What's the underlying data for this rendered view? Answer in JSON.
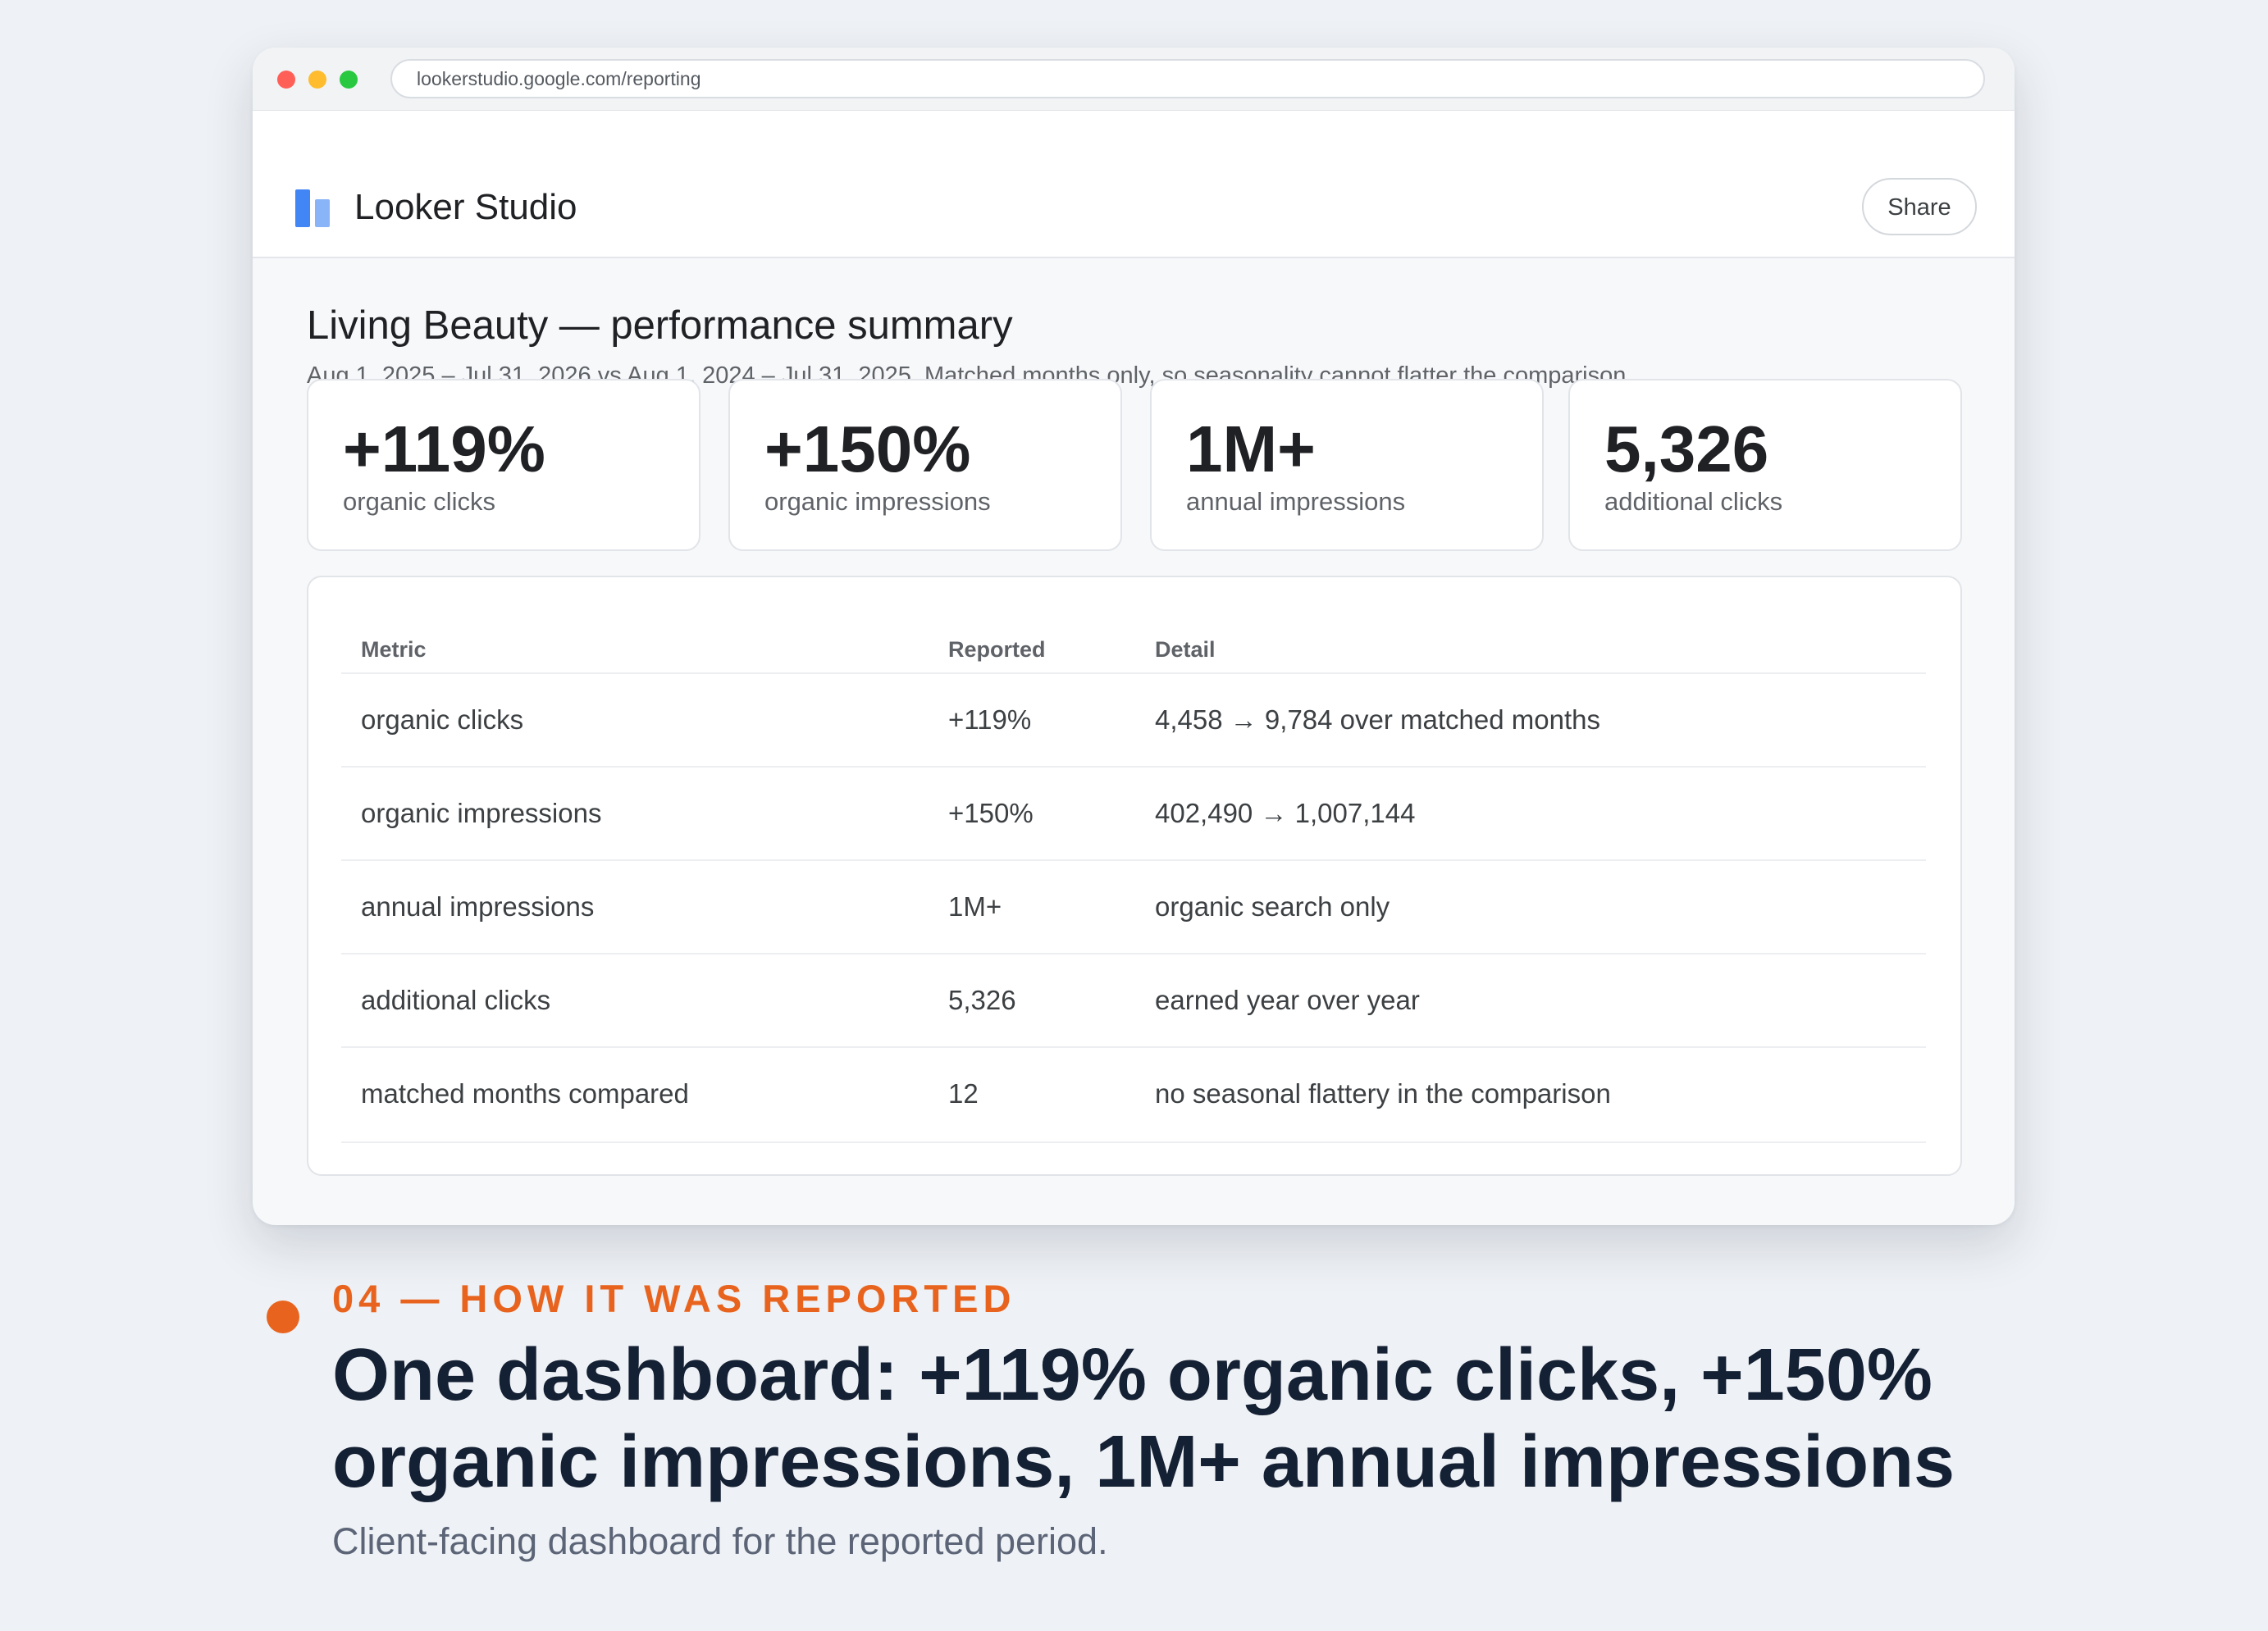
{
  "browser": {
    "url": "lookerstudio.google.com/reporting",
    "traffic_lights": {
      "close": "#ff5f57",
      "minimize": "#febc2e",
      "maximize": "#28c840"
    }
  },
  "app": {
    "name": "Looker Studio",
    "logo_colors": {
      "primary": "#4285f4",
      "secondary": "#8ab4f8"
    },
    "share_label": "Share"
  },
  "report": {
    "title": "Living Beauty — performance summary",
    "subtitle": "Aug 1, 2025 – Jul 31, 2026 vs Aug 1, 2024 – Jul 31, 2025. Matched months only, so seasonality cannot flatter the comparison."
  },
  "kpis": [
    {
      "value": "+119%",
      "label": "organic clicks"
    },
    {
      "value": "+150%",
      "label": "organic impressions"
    },
    {
      "value": "1M+",
      "label": "annual impressions"
    },
    {
      "value": "5,326",
      "label": "additional clicks"
    }
  ],
  "table": {
    "headers": [
      "Metric",
      "Reported",
      "Detail"
    ],
    "rows": [
      {
        "metric": "organic clicks",
        "reported": "+119%",
        "detail": "4,458 → 9,784 over matched months"
      },
      {
        "metric": "organic impressions",
        "reported": "+150%",
        "detail": "402,490 → 1,007,144"
      },
      {
        "metric": "annual impressions",
        "reported": "1M+",
        "detail": "organic search only"
      },
      {
        "metric": "additional clicks",
        "reported": "5,326",
        "detail": "earned year over year"
      },
      {
        "metric": "matched months compared",
        "reported": "12",
        "detail": "no seasonal flattery in the comparison"
      }
    ]
  },
  "footer": {
    "eyebrow": "04 — HOW IT WAS REPORTED",
    "accent_color": "#e8641e",
    "headline": "One dashboard: +119% organic clicks, +150% organic impressions, 1M+ annual impressions",
    "caption": "Client-facing dashboard for the reported period."
  }
}
